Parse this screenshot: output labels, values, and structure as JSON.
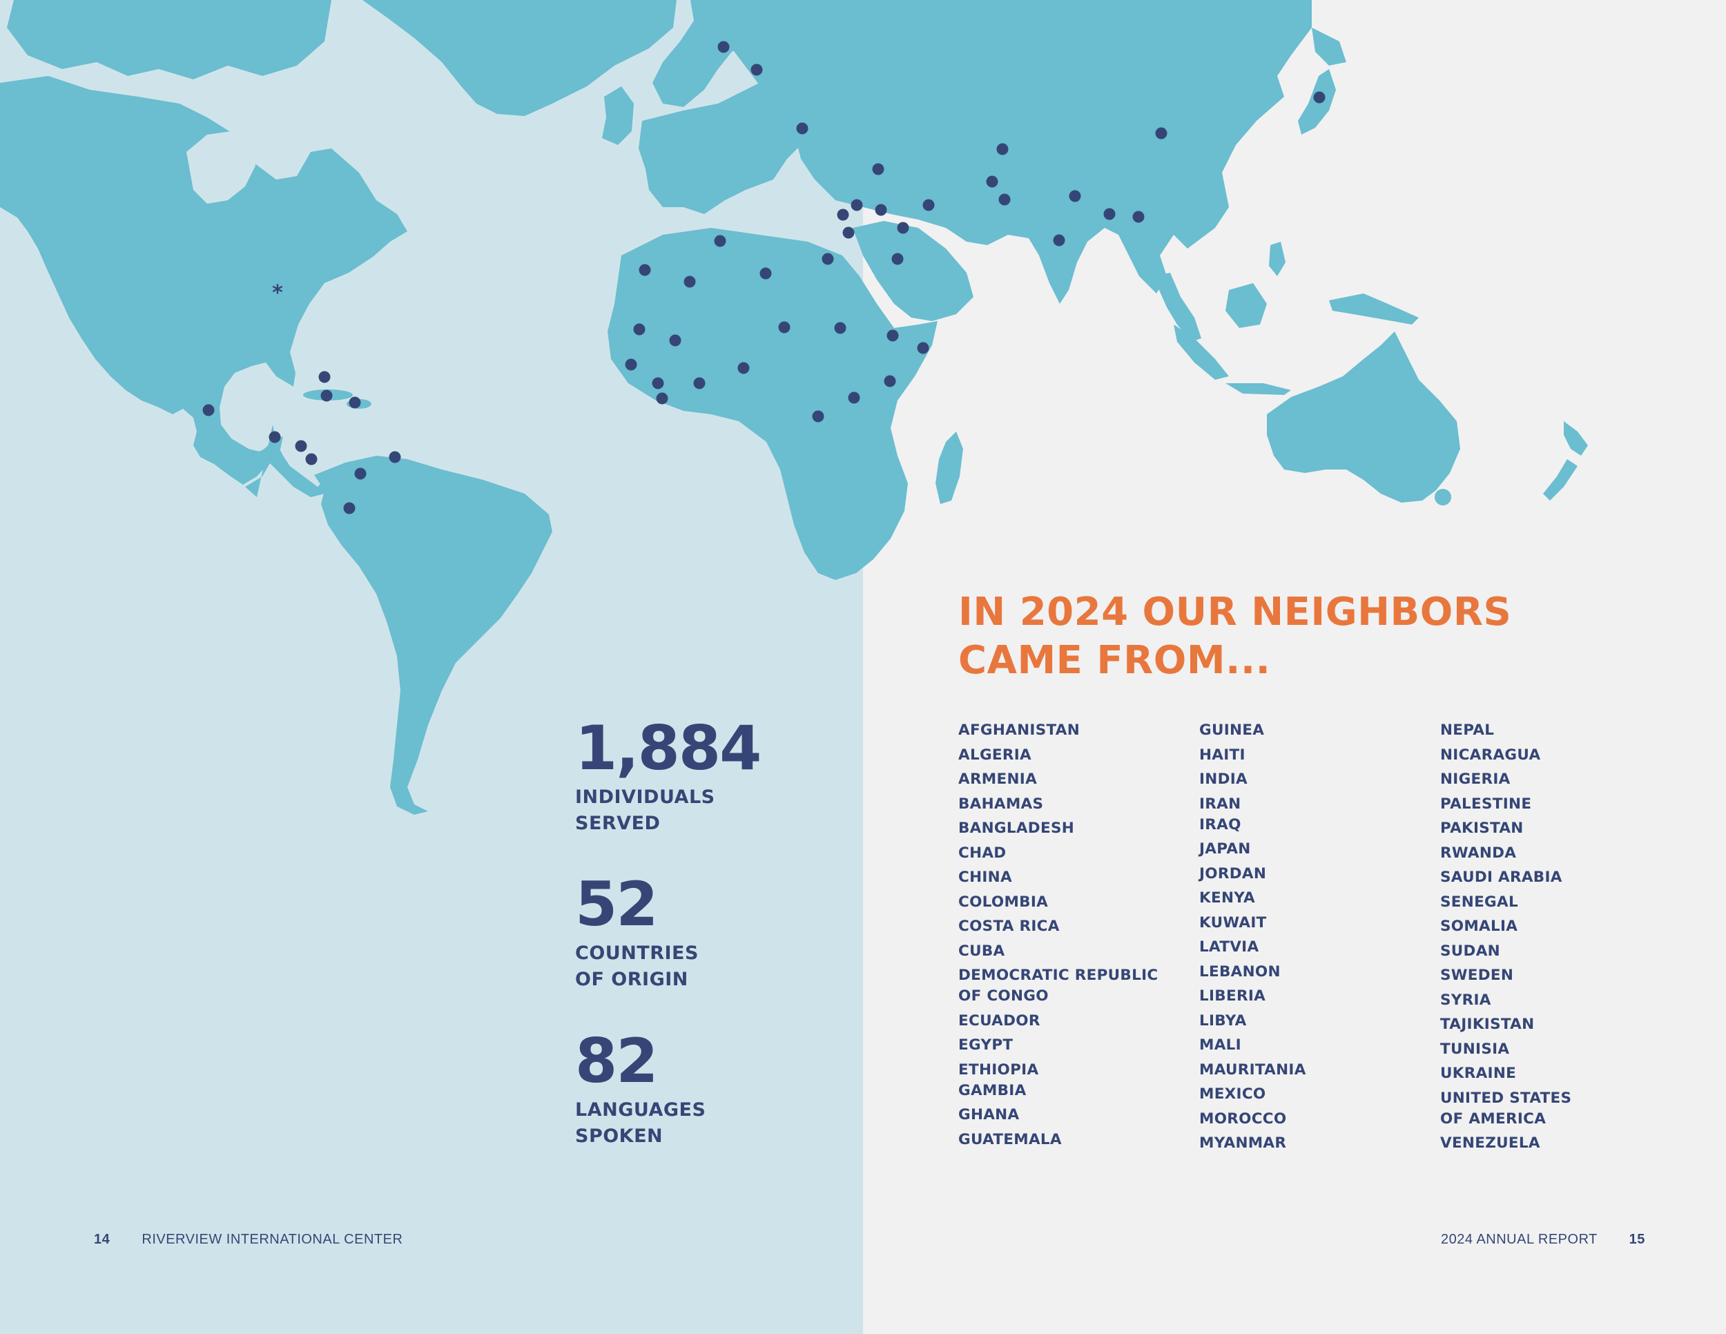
{
  "footer": {
    "left_page_number": "14",
    "left_title": "RIVERVIEW INTERNATIONAL CENTER",
    "right_title": "2024 ANNUAL REPORT",
    "right_page_number": "15"
  },
  "stats": [
    {
      "number": "1,884",
      "label_line1": "INDIVIDUALS",
      "label_line2": "SERVED"
    },
    {
      "number": "52",
      "label_line1": "COUNTRIES",
      "label_line2": "OF ORIGIN"
    },
    {
      "number": "82",
      "label_line1": "LANGUAGES",
      "label_line2": "SPOKEN"
    }
  ],
  "heading": {
    "line1": "IN 2024 OUR NEIGHBORS",
    "line2": "CAME FROM..."
  },
  "countries": {
    "col1": [
      "AFGHANISTAN",
      "ALGERIA",
      "ARMENIA",
      "BAHAMAS",
      "BANGLADESH",
      "CHAD",
      "CHINA",
      "COLOMBIA",
      "COSTA RICA",
      "CUBA",
      "DEMOCRATIC REPUBLIC",
      "OF CONGO",
      "ECUADOR",
      "EGYPT",
      "ETHIOPIA",
      "GAMBIA",
      "GHANA",
      "GUATEMALA"
    ],
    "col2": [
      "GUINEA",
      "HAITI",
      "INDIA",
      "IRAN",
      "IRAQ",
      "JAPAN",
      "JORDAN",
      "KENYA",
      "KUWAIT",
      "LATVIA",
      "LEBANON",
      "LIBERIA",
      "LIBYA",
      "MALI",
      "MAURITANIA",
      "MEXICO",
      "MOROCCO",
      "MYANMAR"
    ],
    "col3": [
      "NEPAL",
      "NICARAGUA",
      "NIGERIA",
      "PALESTINE",
      "PAKISTAN",
      "RWANDA",
      "SAUDI ARABIA",
      "SENEGAL",
      "SOMALIA",
      "SUDAN",
      "SWEDEN",
      "SYRIA",
      "TAJIKISTAN",
      "TUNISIA",
      "UKRAINE",
      "UNITED STATES",
      "OF AMERICA",
      "VENEZUELA"
    ]
  },
  "colors": {
    "land": "#6bbdd0",
    "dot": "#354676",
    "heading": "#e8773d",
    "text": "#354676",
    "left_bg": "#cfe4ea",
    "right_bg": "#f1f1f1"
  }
}
